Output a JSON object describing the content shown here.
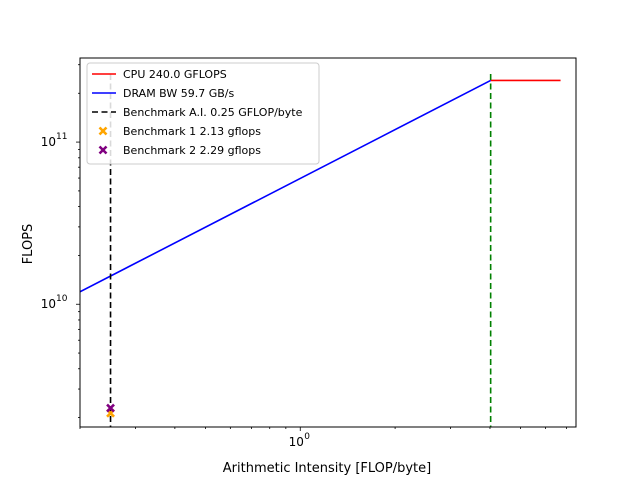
{
  "chart_data": {
    "type": "line",
    "title": "",
    "xlabel": "Arithmetic Intensity [FLOP/byte]",
    "ylabel": "FLOPS",
    "xscale": "log",
    "yscale": "log",
    "xlim": [
      0.2,
      7.5
    ],
    "ylim": [
      1750000000.0,
      330000000000.0
    ],
    "grid": false,
    "legend_position": "top-left",
    "x_ticks": [
      {
        "value": 1,
        "label": "10",
        "exp": "0"
      }
    ],
    "y_ticks": [
      {
        "value": 10000000000.0,
        "label": "10",
        "exp": "10"
      },
      {
        "value": 100000000000.0,
        "label": "10",
        "exp": "11"
      }
    ],
    "series": [
      {
        "name": "CPU 240.0 GFLOPS",
        "kind": "line",
        "color": "#ff0000",
        "style": "solid",
        "x": [
          4.02,
          6.7
        ],
        "y": [
          240000000000.0,
          240000000000.0
        ]
      },
      {
        "name": "DRAM BW 59.7 GB/s",
        "kind": "line",
        "color": "#0000ff",
        "style": "solid",
        "x": [
          0.2,
          4.02
        ],
        "y": [
          11940000000.0,
          240000000000.0
        ]
      },
      {
        "name": "Benchmark A.I. 0.25 GFLOP/byte",
        "kind": "vline",
        "color": "#000000",
        "style": "dashed",
        "x": 0.25
      },
      {
        "name": "Benchmark 1 2.13 gflops",
        "kind": "scatter",
        "color": "#ffa500",
        "marker": "x",
        "x": [
          0.25
        ],
        "y": [
          2130000000.0
        ]
      },
      {
        "name": "Benchmark 2 2.29 gflops",
        "kind": "scatter",
        "color": "#800080",
        "marker": "x",
        "x": [
          0.25
        ],
        "y": [
          2290000000.0
        ]
      },
      {
        "name": "",
        "kind": "vline",
        "color": "#008000",
        "style": "dashed",
        "x": 4.02,
        "in_legend": false
      }
    ]
  }
}
